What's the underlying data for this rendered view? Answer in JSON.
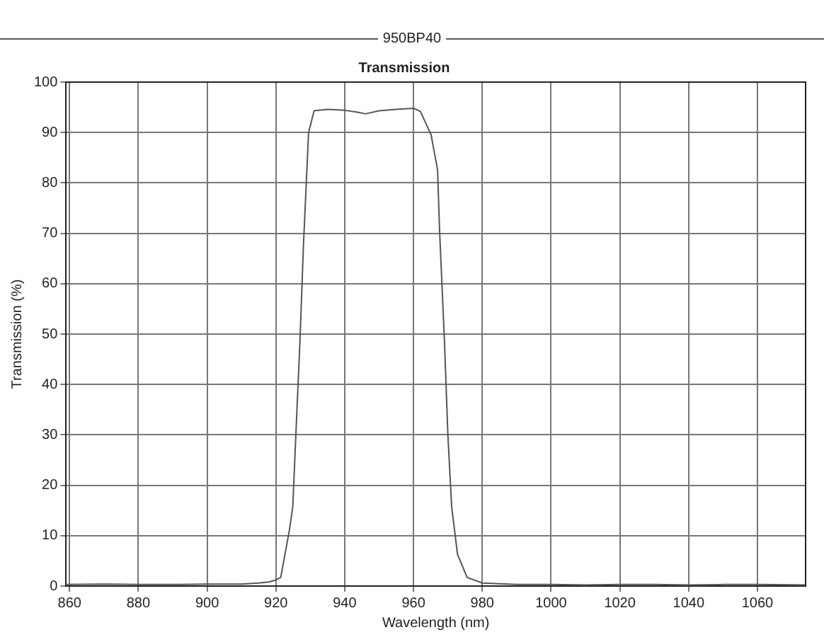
{
  "chart_data": {
    "type": "line",
    "title": "950BP40",
    "subtitle": "Transmission",
    "xlabel": "Wavelength (nm)",
    "ylabel": "Transmission (%)",
    "x": [
      859,
      870,
      880,
      890,
      900,
      910,
      915,
      918,
      920,
      921.4,
      923.9,
      924.9,
      925.8,
      927.0,
      928.0,
      929.5,
      931.1,
      935,
      940,
      944,
      946,
      950,
      955,
      960,
      962,
      965.1,
      967.0,
      967.6,
      969.0,
      970.0,
      971.1,
      972.8,
      975.6,
      980,
      990,
      1000,
      1010,
      1020,
      1030,
      1040,
      1050,
      1060,
      1074
    ],
    "series": [
      {
        "color": "#555555",
        "values": [
          0.3,
          0.4,
          0.3,
          0.3,
          0.4,
          0.4,
          0.6,
          0.8,
          1.2,
          1.7,
          11,
          15.7,
          30,
          48.7,
          67.5,
          90,
          94.3,
          94.6,
          94.4,
          94.0,
          93.7,
          94.3,
          94.6,
          94.8,
          94.2,
          89.6,
          82.6,
          70.3,
          48.7,
          30,
          15.7,
          6.3,
          1.7,
          0.6,
          0.3,
          0.3,
          0.2,
          0.3,
          0.3,
          0.2,
          0.3,
          0.3,
          0.2
        ]
      }
    ],
    "xlim": [
      859,
      1074
    ],
    "xticks": [
      860,
      880,
      900,
      920,
      940,
      960,
      980,
      1000,
      1020,
      1040,
      1060
    ],
    "ylim": [
      0,
      100
    ],
    "yticks": [
      0,
      10,
      20,
      30,
      40,
      50,
      60,
      70,
      80,
      90,
      100
    ],
    "grid": true,
    "legend": false,
    "marker": "none",
    "line_style": "solid"
  }
}
